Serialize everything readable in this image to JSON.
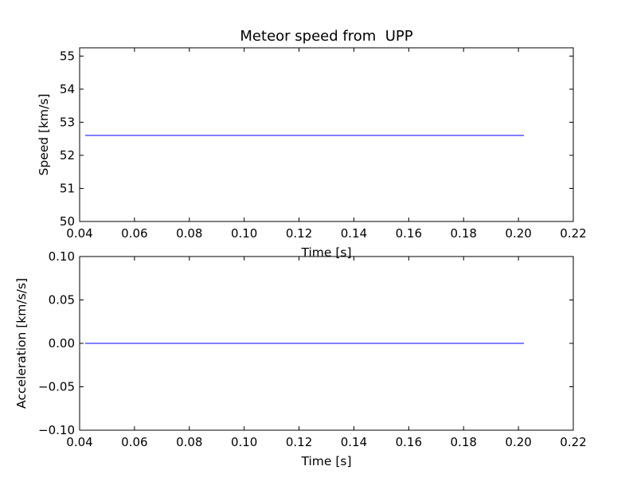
{
  "chart_data": [
    {
      "type": "line",
      "title": "Meteor speed from  UPP",
      "xlabel": "Time [s]",
      "ylabel": "Speed [km/s]",
      "xlim": [
        0.04,
        0.22
      ],
      "ylim": [
        50,
        55.25
      ],
      "xticks": [
        "0.04",
        "0.06",
        "0.08",
        "0.10",
        "0.12",
        "0.14",
        "0.16",
        "0.18",
        "0.20",
        "0.22"
      ],
      "yticks": [
        "50",
        "51",
        "52",
        "53",
        "54",
        "55"
      ],
      "grid": false,
      "color": "#0000ff",
      "series": [
        {
          "x": [
            0.042,
            0.202
          ],
          "y": [
            52.6,
            52.6
          ]
        }
      ]
    },
    {
      "type": "line",
      "title": "",
      "xlabel": "Time [s]",
      "ylabel": "Acceleration [km/s/s]",
      "xlim": [
        0.04,
        0.22
      ],
      "ylim": [
        -0.1,
        0.1
      ],
      "xticks": [
        "0.04",
        "0.06",
        "0.08",
        "0.10",
        "0.12",
        "0.14",
        "0.16",
        "0.18",
        "0.20",
        "0.22"
      ],
      "yticks": [
        "0.10",
        "0.05",
        "0.00",
        "−0.05",
        "−0.10"
      ],
      "grid": false,
      "color": "#0000ff",
      "series": [
        {
          "x": [
            0.042,
            0.202
          ],
          "y": [
            0.0,
            0.0
          ]
        }
      ]
    }
  ]
}
